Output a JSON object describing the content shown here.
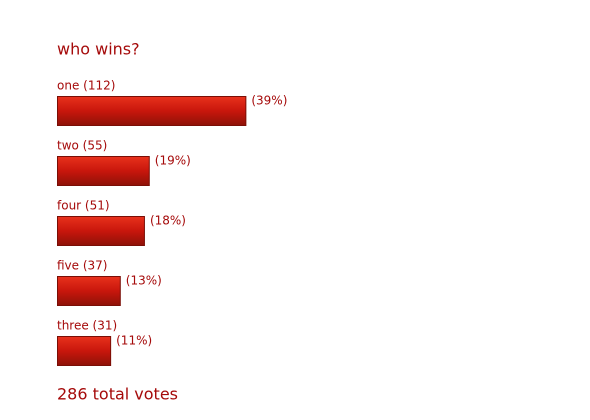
{
  "chart_data": {
    "type": "bar",
    "title": "who wins?",
    "categories": [
      "one (112)",
      "two (55)",
      "four (51)",
      "five (37)",
      "three (31)"
    ],
    "values": [
      39,
      19,
      18,
      13,
      11
    ],
    "value_labels": [
      "(39%)",
      "(19%)",
      "(18%)",
      "(13%)",
      "(11%)"
    ],
    "color": "#c8160c",
    "footer": "286 total votes"
  }
}
